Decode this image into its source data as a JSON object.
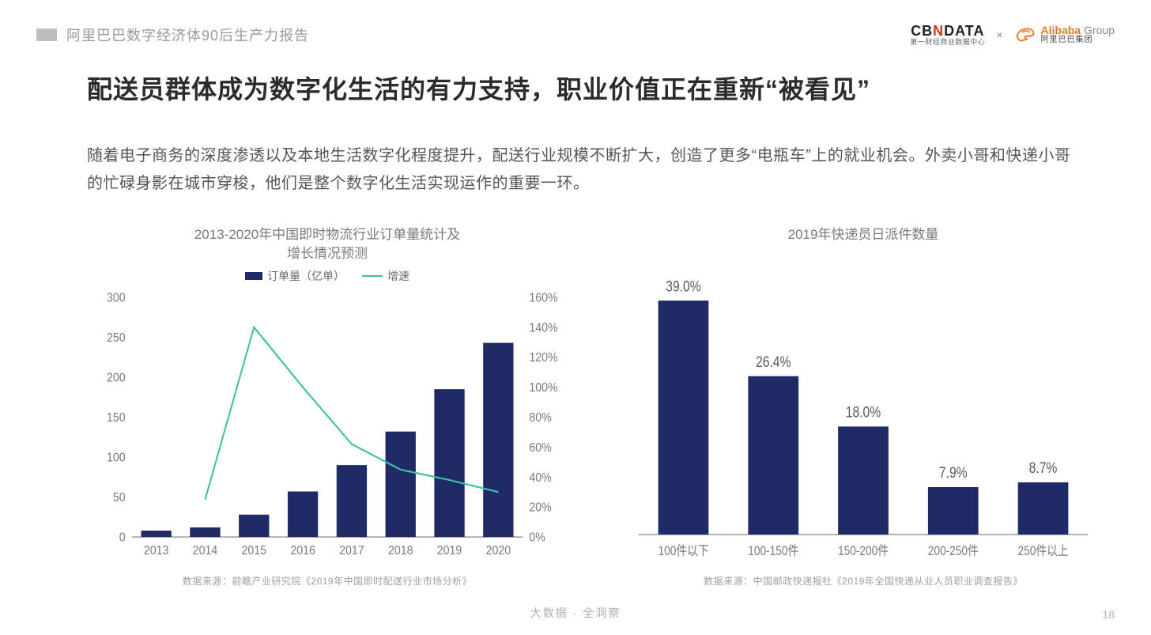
{
  "header": {
    "doc_title": "阿里巴巴数字经济体90后生产力报告",
    "logo_cbn_main_pre": "CB",
    "logo_cbn_main_accent": "N",
    "logo_cbn_main_post": "DATA",
    "logo_cbn_sub": "第一财经商业数据中心",
    "logo_x": "×",
    "logo_ali_en": "Alibaba",
    "logo_ali_en_group": "Group",
    "logo_ali_cn": "阿里巴巴集团",
    "ali_icon_color": "#e77a2b"
  },
  "title": "配送员群体成为数字化生活的有力支持，职业价值正在重新“被看见”",
  "body": "随着电子商务的深度渗透以及本地生活数字化程度提升，配送行业规模不断扩大，创造了更多“电瓶车”上的就业机会。外卖小哥和快递小哥的忙碌身影在城市穿梭，他们是整个数字化生活实现运作的重要一环。",
  "chart_left": {
    "type": "bar+line",
    "title_line1": "2013-2020年中国即时物流行业订单量统计及",
    "title_line2": "增长情况预测",
    "legend_bar": "订单量（亿单）",
    "legend_line": "增速",
    "categories": [
      "2013",
      "2014",
      "2015",
      "2016",
      "2017",
      "2018",
      "2019",
      "2020"
    ],
    "bar_values": [
      8,
      12,
      28,
      57,
      90,
      132,
      185,
      243
    ],
    "line_values_pct": [
      null,
      25,
      140,
      100,
      62,
      45,
      38,
      30
    ],
    "y_left": {
      "min": 0,
      "max": 300,
      "step": 50
    },
    "y_right": {
      "min": 0,
      "max": 160,
      "step": 20,
      "suffix": "%"
    },
    "colors": {
      "bar": "#1f2a66",
      "line": "#3fc0a0",
      "axis_text": "#7a7a7a",
      "source_text": "#9e9e9e"
    },
    "axis_fontsize": 14,
    "bar_width_ratio": 0.62,
    "line_width": 2,
    "source": "数据来源：前瞻产业研究院《2019年中国即时配送行业市场分析》"
  },
  "chart_right": {
    "type": "bar",
    "title": "2019年快递员日派件数量",
    "categories": [
      "100件以下",
      "100-150件",
      "150-200件",
      "200-250件",
      "250件以上"
    ],
    "values_pct": [
      39.0,
      26.4,
      18.0,
      7.9,
      8.7
    ],
    "value_labels": [
      "39.0%",
      "26.4%",
      "18.0%",
      "7.9%",
      "8.7%"
    ],
    "y": {
      "min": 0,
      "max": 40
    },
    "colors": {
      "bar": "#1f2a66",
      "label_text": "#5a5a5a",
      "axis_text": "#7a7a7a",
      "source_text": "#9e9e9e"
    },
    "axis_fontsize": 14,
    "value_fontsize": 16,
    "bar_width_ratio": 0.56,
    "source": "数据来源：中国邮政快递报社《2019年全国快递从业人员职业调查报告》"
  },
  "footer": {
    "center": "大数据 · 全洞察",
    "page_number": "18"
  }
}
